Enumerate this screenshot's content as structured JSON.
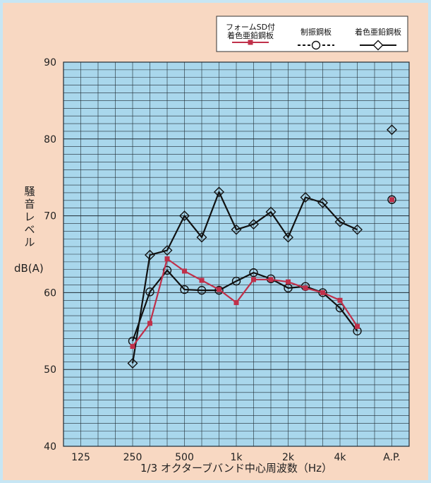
{
  "colors": {
    "background": "#f8d8c2",
    "border": "#c7e6f4",
    "plot_bg": "#a9d7ec",
    "grid": "#1f2a33",
    "foam_series": "#c0304a",
    "black_series": "#111111"
  },
  "chart_data": {
    "type": "line",
    "title": "",
    "xlabel": "1/3 オクターブバンド中心周波数（Hz）",
    "ylabel_lines": [
      "騒",
      "音",
      "レ",
      "ベ",
      "ル"
    ],
    "ylabel_unit": "dB(A)",
    "ylim": [
      40,
      90
    ],
    "yticks": [
      40,
      50,
      60,
      70,
      80,
      90
    ],
    "grid": true,
    "legend_position": "top-right",
    "x_bands": [
      "125",
      "160",
      "200",
      "250",
      "315",
      "400",
      "500",
      "630",
      "800",
      "1k",
      "1.25k",
      "1.6k",
      "2k",
      "2.5k",
      "3.15k",
      "4k",
      "5k",
      "6.3k",
      "A.P."
    ],
    "xtick_labels": [
      {
        "band": "125",
        "label": "125"
      },
      {
        "band": "250",
        "label": "250"
      },
      {
        "band": "500",
        "label": "500"
      },
      {
        "band": "1k",
        "label": "1k"
      },
      {
        "band": "2k",
        "label": "2k"
      },
      {
        "band": "4k",
        "label": "4k"
      },
      {
        "band": "A.P.",
        "label": "A.P."
      }
    ],
    "series": [
      {
        "name": "フォームSD付\n着色亜鉛鋼板",
        "marker": "square",
        "color": "#c0304a",
        "bands": [
          "250",
          "315",
          "400",
          "500",
          "630",
          "800",
          "1k",
          "1.25k",
          "1.6k",
          "2k",
          "2.5k",
          "3.15k",
          "4k",
          "5k"
        ],
        "values": [
          53.0,
          56.0,
          64.4,
          62.8,
          61.6,
          60.4,
          58.7,
          61.7,
          61.7,
          61.4,
          60.6,
          60.0,
          59.0,
          55.6
        ],
        "ap_value": 72.1
      },
      {
        "name": "制振鋼板",
        "marker": "circle",
        "color": "#111111",
        "bands": [
          "250",
          "315",
          "400",
          "500",
          "630",
          "800",
          "1k",
          "1.25k",
          "1.6k",
          "2k",
          "2.5k",
          "3.15k",
          "4k",
          "5k"
        ],
        "values": [
          53.7,
          60.1,
          62.9,
          60.4,
          60.3,
          60.3,
          61.5,
          62.6,
          61.8,
          60.6,
          60.8,
          60.0,
          58.0,
          55.0
        ],
        "ap_value": 72.1
      },
      {
        "name": "着色亜鉛鋼板",
        "marker": "diamond",
        "color": "#111111",
        "bands": [
          "250",
          "315",
          "400",
          "500",
          "630",
          "800",
          "1k",
          "1.25k",
          "1.6k",
          "2k",
          "2.5k",
          "3.15k",
          "4k",
          "5k"
        ],
        "values": [
          50.8,
          64.9,
          65.5,
          70.0,
          67.2,
          73.1,
          68.2,
          68.9,
          70.5,
          67.2,
          72.4,
          71.7,
          69.2,
          68.2
        ],
        "ap_value": 81.2
      }
    ]
  }
}
